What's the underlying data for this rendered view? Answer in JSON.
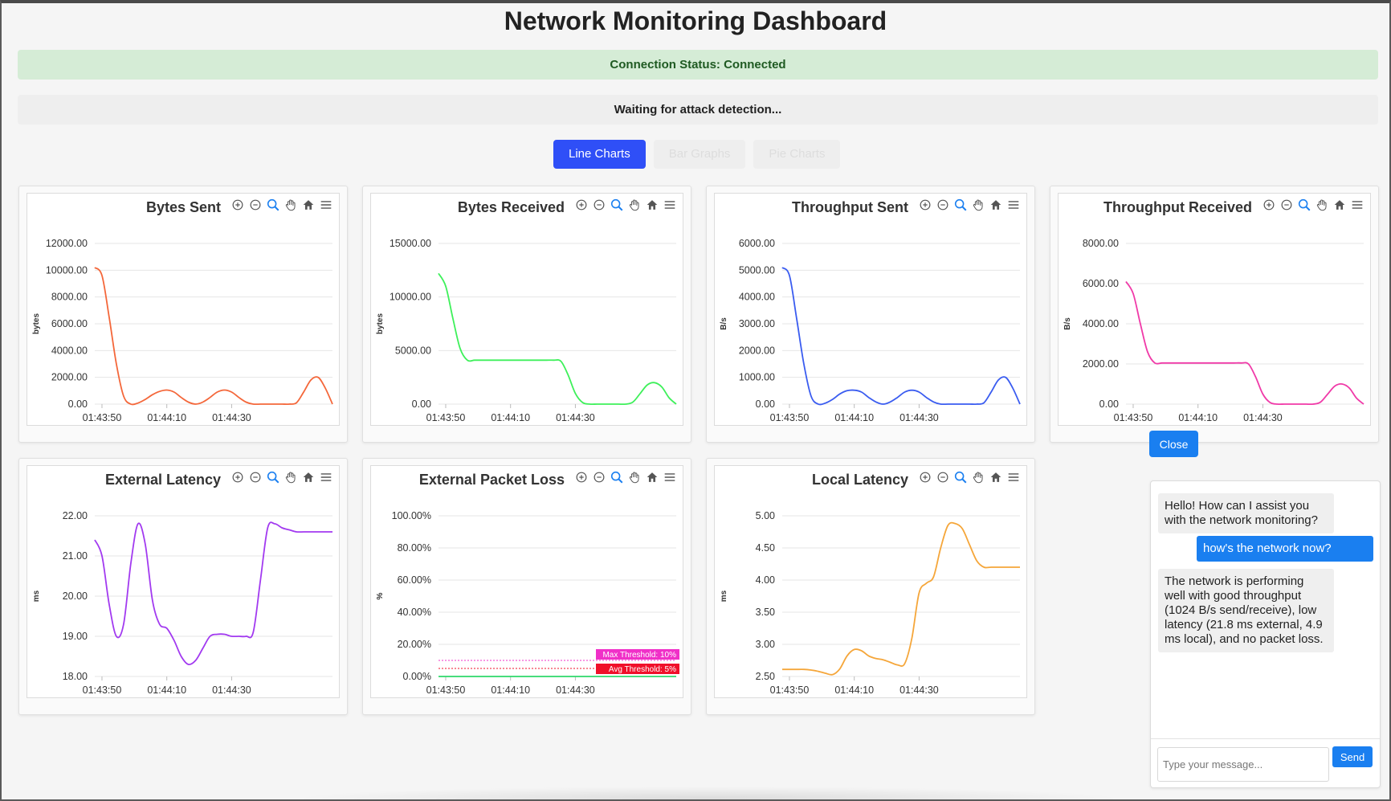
{
  "page": {
    "title": "Network Monitoring Dashboard",
    "connection_status": "Connection Status: Connected",
    "attack_status": "Waiting for attack detection..."
  },
  "tabs": [
    {
      "label": "Line Charts",
      "active": true
    },
    {
      "label": "Bar Graphs",
      "active": false
    },
    {
      "label": "Pie Charts",
      "active": false
    }
  ],
  "toolbar_icons": [
    "zoom-in-icon",
    "zoom-out-icon",
    "zoom-select-icon",
    "pan-hand-icon",
    "home-icon",
    "menu-icon"
  ],
  "chat": {
    "close_label": "Close",
    "messages": [
      {
        "role": "bot",
        "text": "Hello! How can I assist you with the network monitoring?"
      },
      {
        "role": "user",
        "text": "how's the network now?"
      },
      {
        "role": "bot",
        "text": "The network is performing well with good throughput (1024 B/s send/receive), low latency (21.8 ms external, 4.9 ms local), and no packet loss."
      }
    ],
    "input_placeholder": "Type your message...",
    "send_label": "Send"
  },
  "chart_data": [
    {
      "type": "line",
      "title": "Bytes Sent",
      "ylabel": "bytes",
      "color": "#f4673a",
      "ylim": [
        0,
        12000
      ],
      "yticks": [
        "0.00",
        "2000.00",
        "4000.00",
        "6000.00",
        "8000.00",
        "10000.00",
        "12000.00"
      ],
      "xticks": [
        "01:43:50",
        "01:44:10",
        "01:44:30"
      ],
      "x": [
        0,
        2,
        4,
        6,
        8,
        10,
        12,
        14,
        16,
        18,
        20,
        22,
        24,
        26,
        28,
        30,
        32,
        34,
        36,
        38,
        40,
        42,
        44,
        46,
        48,
        50,
        52,
        54,
        56,
        58,
        60,
        62,
        64,
        66
      ],
      "values": [
        10200,
        9600,
        6500,
        3000,
        600,
        0,
        80,
        350,
        700,
        950,
        1050,
        900,
        500,
        150,
        0,
        150,
        500,
        900,
        1050,
        900,
        500,
        150,
        0,
        0,
        0,
        0,
        0,
        0,
        100,
        900,
        1800,
        2000,
        1200,
        0
      ]
    },
    {
      "type": "line",
      "title": "Bytes Received",
      "ylabel": "bytes",
      "color": "#3ef05a",
      "ylim": [
        0,
        15000
      ],
      "yticks": [
        "0.00",
        "5000.00",
        "10000.00",
        "15000.00"
      ],
      "xticks": [
        "01:43:50",
        "01:44:10",
        "01:44:30"
      ],
      "x": [
        0,
        2,
        4,
        6,
        8,
        10,
        12,
        14,
        16,
        18,
        20,
        22,
        24,
        26,
        28,
        30,
        32,
        34,
        36,
        38,
        40,
        42,
        44,
        46,
        48,
        50,
        52,
        54,
        56,
        58,
        60,
        62,
        64,
        66
      ],
      "values": [
        12200,
        11000,
        8000,
        5200,
        4100,
        4100,
        4100,
        4100,
        4100,
        4100,
        4100,
        4100,
        4100,
        4100,
        4100,
        4100,
        4100,
        4000,
        2700,
        1000,
        150,
        0,
        0,
        0,
        0,
        0,
        0,
        200,
        1000,
        1800,
        2000,
        1600,
        600,
        0
      ]
    },
    {
      "type": "line",
      "title": "Throughput Sent",
      "ylabel": "B/s",
      "color": "#3a5cf0",
      "ylim": [
        0,
        6000
      ],
      "yticks": [
        "0.00",
        "1000.00",
        "2000.00",
        "3000.00",
        "4000.00",
        "5000.00",
        "6000.00"
      ],
      "xticks": [
        "01:43:50",
        "01:44:10",
        "01:44:30"
      ],
      "x": [
        0,
        2,
        4,
        6,
        8,
        10,
        12,
        14,
        16,
        18,
        20,
        22,
        24,
        26,
        28,
        30,
        32,
        34,
        36,
        38,
        40,
        42,
        44,
        46,
        48,
        50,
        52,
        54,
        56,
        58,
        60,
        62,
        64,
        66
      ],
      "values": [
        5100,
        4800,
        3200,
        1500,
        300,
        0,
        40,
        180,
        380,
        500,
        520,
        450,
        250,
        80,
        0,
        80,
        250,
        450,
        520,
        450,
        250,
        80,
        0,
        0,
        0,
        0,
        0,
        0,
        50,
        450,
        900,
        1000,
        600,
        0
      ]
    },
    {
      "type": "line",
      "title": "Throughput Received",
      "ylabel": "B/s",
      "color": "#f03aa8",
      "ylim": [
        0,
        8000
      ],
      "yticks": [
        "0.00",
        "2000.00",
        "4000.00",
        "6000.00",
        "8000.00"
      ],
      "xticks": [
        "01:43:50",
        "01:44:10",
        "01:44:30"
      ],
      "x": [
        0,
        2,
        4,
        6,
        8,
        10,
        12,
        14,
        16,
        18,
        20,
        22,
        24,
        26,
        28,
        30,
        32,
        34,
        36,
        38,
        40,
        42,
        44,
        46,
        48,
        50,
        52,
        54,
        56,
        58,
        60,
        62,
        64,
        66
      ],
      "values": [
        6100,
        5500,
        4000,
        2600,
        2050,
        2050,
        2050,
        2050,
        2050,
        2050,
        2050,
        2050,
        2050,
        2050,
        2050,
        2050,
        2050,
        2000,
        1350,
        500,
        80,
        0,
        0,
        0,
        0,
        0,
        0,
        100,
        500,
        900,
        1000,
        800,
        300,
        0
      ]
    },
    {
      "type": "line",
      "title": "External Latency",
      "ylabel": "ms",
      "color": "#a23af0",
      "ylim": [
        18,
        22
      ],
      "yticks": [
        "18.00",
        "19.00",
        "20.00",
        "21.00",
        "22.00"
      ],
      "xticks": [
        "01:43:50",
        "01:44:10",
        "01:44:30"
      ],
      "x": [
        0,
        2,
        4,
        6,
        8,
        10,
        12,
        14,
        16,
        18,
        20,
        22,
        24,
        26,
        28,
        30,
        32,
        34,
        36,
        38,
        40,
        42,
        44,
        46,
        48,
        50,
        52,
        54,
        56,
        58,
        60,
        62,
        64,
        66
      ],
      "values": [
        21.4,
        21.0,
        19.8,
        19.0,
        19.3,
        20.8,
        21.8,
        21.3,
        19.9,
        19.3,
        19.2,
        18.9,
        18.5,
        18.3,
        18.4,
        18.7,
        19.0,
        19.05,
        19.05,
        19.0,
        19.0,
        19.0,
        19.1,
        20.4,
        21.7,
        21.8,
        21.7,
        21.65,
        21.6,
        21.6,
        21.6,
        21.6,
        21.6,
        21.6
      ]
    },
    {
      "type": "line",
      "title": "External Packet Loss",
      "ylabel": "%",
      "color": "#2ed86a",
      "ylim": [
        0,
        100
      ],
      "yticks": [
        "0.00%",
        "20.00%",
        "40.00%",
        "60.00%",
        "80.00%",
        "100.00%"
      ],
      "xticks": [
        "01:43:50",
        "01:44:10",
        "01:44:30"
      ],
      "x": [
        0,
        66
      ],
      "values": [
        0,
        0
      ],
      "annotations": [
        {
          "label": "Max Threshold: 10%",
          "value": 10,
          "color": "#f030c8"
        },
        {
          "label": "Avg Threshold: 5%",
          "value": 5,
          "color": "#f0102a"
        }
      ]
    },
    {
      "type": "line",
      "title": "Local Latency",
      "ylabel": "ms",
      "color": "#f5a63a",
      "ylim": [
        2.5,
        5.0
      ],
      "yticks": [
        "2.50",
        "3.00",
        "3.50",
        "4.00",
        "4.50",
        "5.00"
      ],
      "xticks": [
        "01:43:50",
        "01:44:10",
        "01:44:30"
      ],
      "x": [
        0,
        2,
        4,
        6,
        8,
        10,
        12,
        14,
        16,
        18,
        20,
        22,
        24,
        26,
        28,
        30,
        32,
        34,
        36,
        38,
        40,
        42,
        44,
        46,
        48,
        50,
        52,
        54,
        56,
        58,
        60,
        62,
        64,
        66
      ],
      "values": [
        2.61,
        2.61,
        2.61,
        2.61,
        2.6,
        2.58,
        2.55,
        2.53,
        2.62,
        2.82,
        2.92,
        2.9,
        2.82,
        2.78,
        2.76,
        2.72,
        2.68,
        2.7,
        3.1,
        3.8,
        3.95,
        4.05,
        4.5,
        4.85,
        4.88,
        4.8,
        4.55,
        4.3,
        4.2,
        4.2,
        4.2,
        4.2,
        4.2,
        4.2
      ]
    }
  ]
}
